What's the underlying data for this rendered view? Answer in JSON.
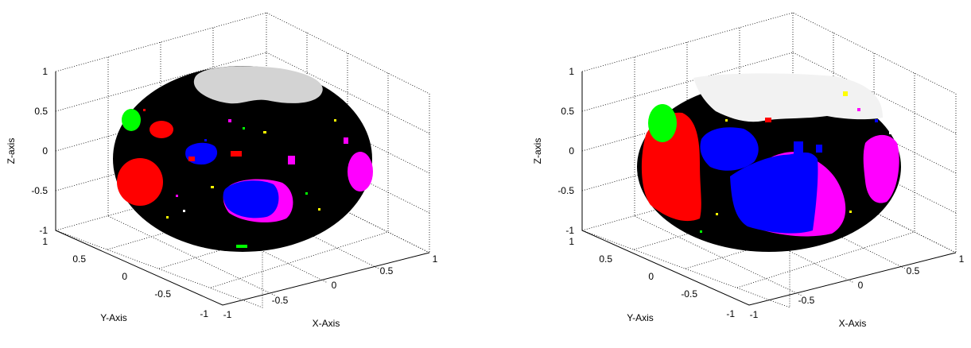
{
  "chart_data": [
    {
      "type": "surface3d",
      "xlabel": "X-Axis",
      "ylabel": "Y-Axis",
      "zlabel": "Z-axis",
      "xlim": [
        -1,
        1
      ],
      "ylim": [
        -1,
        1
      ],
      "zlim": [
        -1,
        1
      ],
      "x_ticks": [
        "-1",
        "-0.5",
        "0",
        "0.5",
        "1"
      ],
      "y_ticks": [
        "-1",
        "-0.5",
        "0",
        "0.5",
        "1"
      ],
      "z_ticks": [
        "-1",
        "-0.5",
        "0",
        "0.5",
        "1"
      ],
      "grid": true,
      "surface_color": "#000000",
      "region_colors": [
        "#d3d3d3",
        "#ff0000",
        "#0000ff",
        "#ff00ff",
        "#00ff00"
      ]
    },
    {
      "type": "surface3d",
      "xlabel": "X-Axis",
      "ylabel": "Y-Axis",
      "zlabel": "Z-axis",
      "xlim": [
        -1,
        1
      ],
      "ylim": [
        -1,
        1
      ],
      "zlim": [
        -1,
        1
      ],
      "x_ticks": [
        "-1",
        "-0.5",
        "0",
        "0.5",
        "1"
      ],
      "y_ticks": [
        "-1",
        "-0.5",
        "0",
        "0.5",
        "1"
      ],
      "z_ticks": [
        "-1",
        "-0.5",
        "0",
        "0.5",
        "1"
      ],
      "grid": true,
      "surface_color": "#000000",
      "region_colors": [
        "#f2f2f2",
        "#ff0000",
        "#0000ff",
        "#ff00ff",
        "#00ff00"
      ]
    }
  ]
}
